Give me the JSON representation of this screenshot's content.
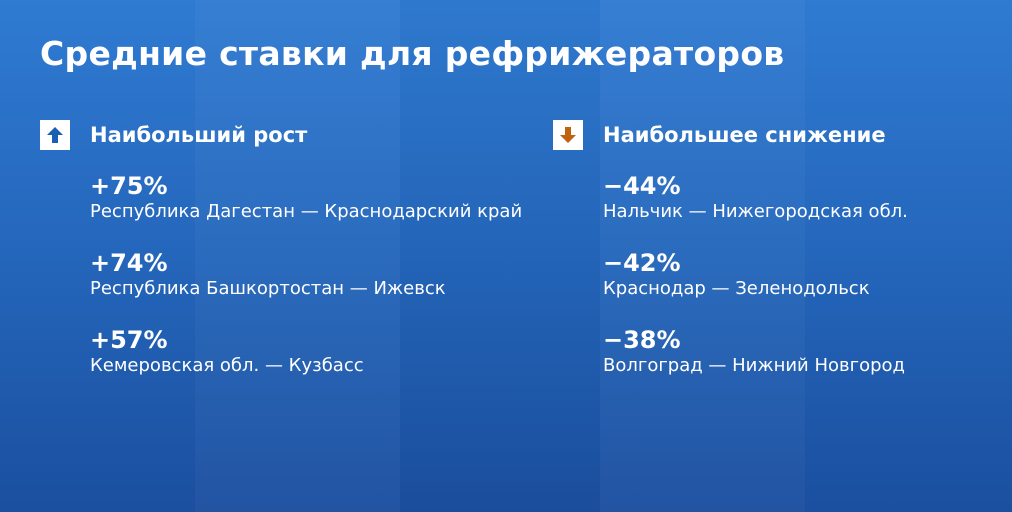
{
  "title": "Средние ставки для рефрижераторов",
  "colors": {
    "up_arrow": "#1a5fb4",
    "down_arrow": "#c0630f",
    "background": "#2466bb"
  },
  "growth": {
    "label": "Наибольший рост",
    "icon": "arrow-up-icon",
    "items": [
      {
        "value": "+75%",
        "route": "Республика Дагестан — Краснодарский край"
      },
      {
        "value": "+74%",
        "route": "Республика Башкортостан — Ижевск"
      },
      {
        "value": "+57%",
        "route": "Кемеровская обл. — Кузбасс"
      }
    ]
  },
  "decline": {
    "label": "Наибольшее снижение",
    "icon": "arrow-down-icon",
    "items": [
      {
        "value": "−44%",
        "route": "Нальчик — Нижегородская обл."
      },
      {
        "value": "−42%",
        "route": "Краснодар — Зеленодольск"
      },
      {
        "value": "−38%",
        "route": "Волгоград — Нижний Новгород"
      }
    ]
  }
}
